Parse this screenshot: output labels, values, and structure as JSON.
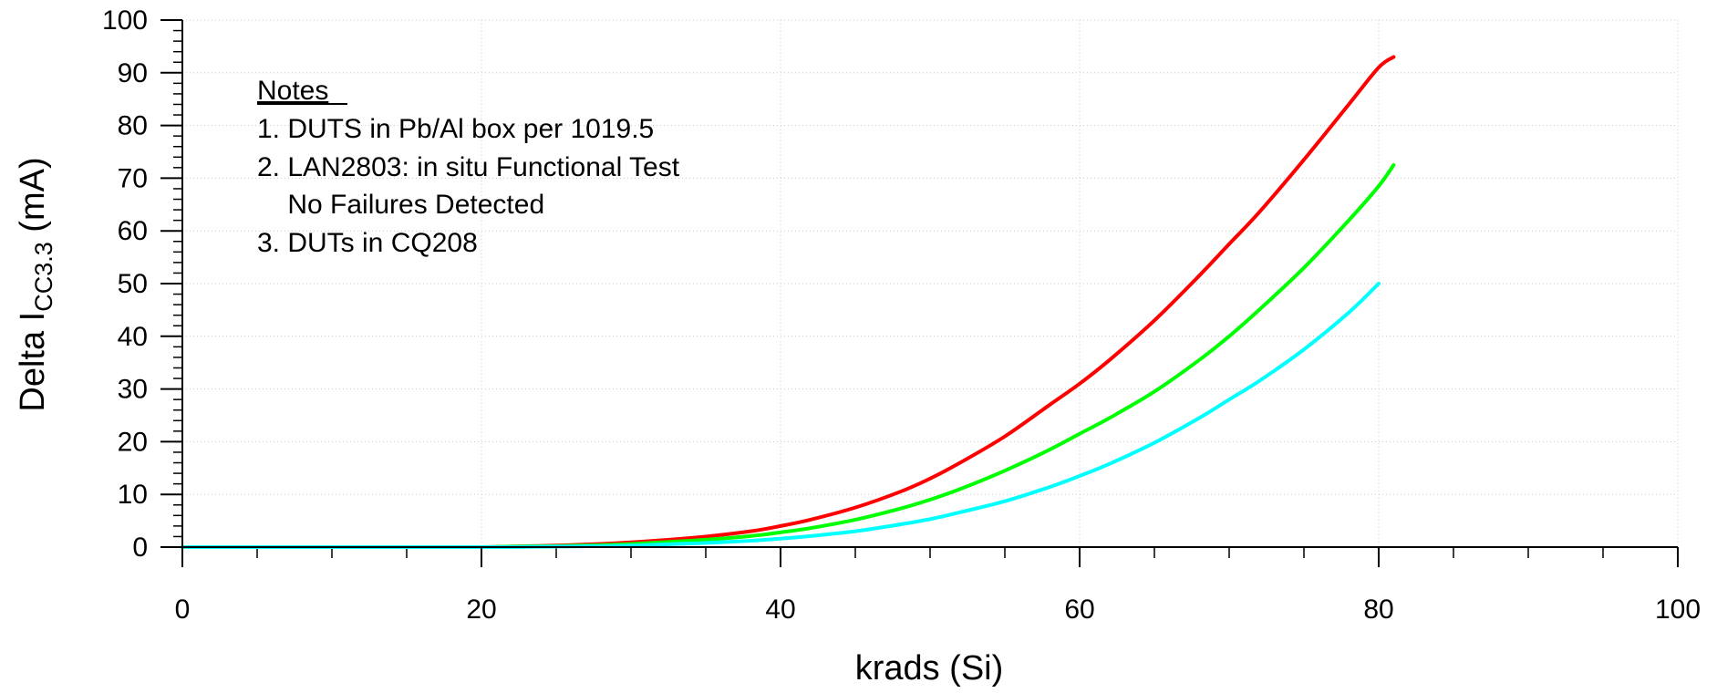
{
  "chart_data": {
    "type": "line",
    "title": "",
    "xlabel": "krads (Si)",
    "ylabel": {
      "prefix": "Delta I",
      "subscript": "CC3.3",
      "suffix": " (mA)"
    },
    "xlim": [
      0,
      100
    ],
    "ylim": [
      0,
      100
    ],
    "x_ticks": [
      0,
      20,
      40,
      60,
      80,
      100
    ],
    "y_ticks": [
      0,
      10,
      20,
      30,
      40,
      50,
      60,
      70,
      80,
      90,
      100
    ],
    "grid": true,
    "legend": null,
    "series": [
      {
        "color": "#ff0000",
        "x": [
          0,
          5,
          10,
          15,
          20,
          22,
          25,
          28,
          30,
          32,
          35,
          38,
          40,
          42,
          45,
          48,
          50,
          52,
          55,
          58,
          60,
          62,
          65,
          68,
          70,
          72,
          75,
          78,
          80,
          81
        ],
        "y": [
          0,
          0,
          0,
          0,
          0,
          0.1,
          0.3,
          0.6,
          0.9,
          1.3,
          2.0,
          3.0,
          4.0,
          5.2,
          7.5,
          10.5,
          13.0,
          16.0,
          21.0,
          27.0,
          31.0,
          35.5,
          43.0,
          51.5,
          57.5,
          63.5,
          73.5,
          84.0,
          91.0,
          93.0
        ]
      },
      {
        "color": "#00ff00",
        "x": [
          0,
          5,
          10,
          15,
          20,
          22,
          25,
          28,
          30,
          32,
          35,
          38,
          40,
          42,
          45,
          48,
          50,
          52,
          55,
          58,
          60,
          62,
          65,
          68,
          70,
          72,
          75,
          78,
          80,
          81
        ],
        "y": [
          0,
          0,
          0,
          0,
          0,
          0.1,
          0.2,
          0.4,
          0.6,
          0.9,
          1.4,
          2.1,
          2.8,
          3.6,
          5.2,
          7.3,
          9.0,
          11.0,
          14.5,
          18.5,
          21.5,
          24.5,
          29.5,
          35.5,
          40.0,
          45.0,
          53.0,
          62.0,
          68.5,
          72.5
        ]
      },
      {
        "color": "#00ffff",
        "x": [
          0,
          5,
          10,
          15,
          20,
          22,
          25,
          28,
          30,
          32,
          35,
          38,
          40,
          42,
          45,
          48,
          50,
          52,
          55,
          58,
          60,
          62,
          65,
          68,
          70,
          72,
          75,
          78,
          80
        ],
        "y": [
          0,
          0,
          0,
          0,
          0,
          0,
          0.1,
          0.2,
          0.3,
          0.5,
          0.8,
          1.2,
          1.6,
          2.1,
          3.0,
          4.3,
          5.3,
          6.6,
          8.7,
          11.4,
          13.5,
          15.8,
          19.8,
          24.5,
          28.0,
          31.5,
          37.5,
          44.5,
          50.0
        ]
      }
    ],
    "annotations": {
      "heading": "Notes",
      "lines": [
        "1. DUTS in Pb/Al box per 1019.5",
        "2. LAN2803: in situ Functional Test",
        "    No Failures Detected",
        "3. DUTs in CQ208"
      ]
    }
  }
}
